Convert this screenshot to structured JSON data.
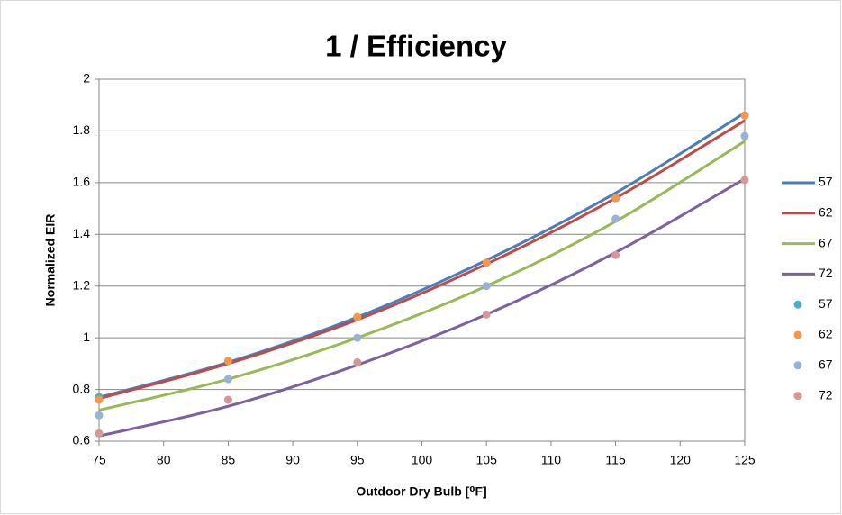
{
  "chart_data": {
    "type": "line",
    "title": "1 / Efficiency",
    "x_label": "Outdoor Dry Bulb [⁰F]",
    "y_label": "Normalized EIR",
    "x": [
      75,
      85,
      95,
      105,
      115,
      125
    ],
    "series": [
      {
        "name": "57",
        "style": "line",
        "color": "#4a7ebb",
        "values": [
          0.77,
          0.905,
          1.08,
          1.3,
          1.56,
          1.87
        ]
      },
      {
        "name": "62",
        "style": "line",
        "color": "#be4b48",
        "values": [
          0.765,
          0.9,
          1.07,
          1.285,
          1.54,
          1.84
        ]
      },
      {
        "name": "67",
        "style": "line",
        "color": "#98b954",
        "values": [
          0.72,
          0.84,
          1.0,
          1.2,
          1.45,
          1.76
        ]
      },
      {
        "name": "72",
        "style": "line",
        "color": "#7d60a0",
        "values": [
          0.62,
          0.735,
          0.895,
          1.09,
          1.33,
          1.615
        ]
      },
      {
        "name": "57",
        "style": "marker",
        "color": "#4bacc6",
        "values": [
          0.77,
          0.91,
          1.08,
          1.29,
          1.54,
          1.86
        ]
      },
      {
        "name": "62",
        "style": "marker",
        "color": "#f79646",
        "values": [
          0.76,
          0.91,
          1.08,
          1.29,
          1.54,
          1.86
        ]
      },
      {
        "name": "67",
        "style": "marker",
        "color": "#95b3d7",
        "values": [
          0.7,
          0.84,
          1.0,
          1.2,
          1.46,
          1.78
        ]
      },
      {
        "name": "72",
        "style": "marker",
        "color": "#d99694",
        "values": [
          0.63,
          0.76,
          0.905,
          1.09,
          1.32,
          1.61
        ]
      }
    ],
    "xlim": [
      75,
      125
    ],
    "xticks": [
      75,
      80,
      85,
      90,
      95,
      100,
      105,
      110,
      115,
      120,
      125
    ],
    "ylim": [
      0.6,
      2
    ],
    "yticks": [
      0.6,
      0.8,
      1,
      1.2,
      1.4,
      1.6,
      1.8,
      2
    ],
    "grid": true,
    "legend": "right"
  }
}
